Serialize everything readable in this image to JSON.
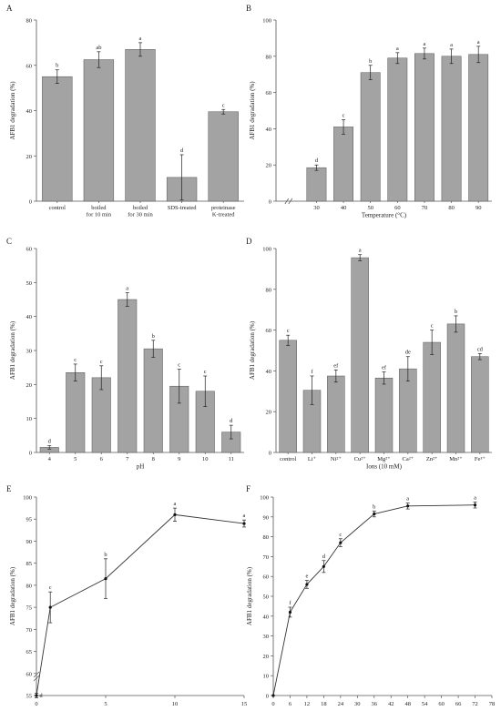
{
  "chart_data": [
    {
      "panel": "A",
      "type": "bar",
      "ylabel": "AFB1 degradation (%)",
      "xlabel": "",
      "ylim": [
        0,
        80
      ],
      "yticks": [
        0,
        20,
        40,
        60,
        80
      ],
      "categories": [
        "control",
        "boiled\nfor 10 min",
        "boiled\nfor 30 min",
        "SDS-treated",
        "proteinase\nK-treated"
      ],
      "values": [
        55,
        62.5,
        67,
        10.5,
        39.5
      ],
      "errors": [
        3,
        3.5,
        3,
        10,
        1
      ],
      "labels": [
        "b",
        "ab",
        "a",
        "d",
        "c"
      ]
    },
    {
      "panel": "B",
      "type": "bar",
      "ylabel": "AFB1 degradation (%)",
      "xlabel": "Temperature (°C)",
      "ylim": [
        0,
        100
      ],
      "yticks": [
        0,
        20,
        40,
        60,
        80,
        100
      ],
      "categories": [
        "30",
        "40",
        "50",
        "60",
        "70",
        "80",
        "90"
      ],
      "values": [
        18.5,
        41,
        71,
        79,
        81.5,
        80,
        81
      ],
      "errors": [
        1.5,
        4,
        4,
        3,
        3,
        4,
        4.5
      ],
      "labels": [
        "d",
        "c",
        "b",
        "a",
        "a",
        "a",
        "a"
      ]
    },
    {
      "panel": "C",
      "type": "bar",
      "ylabel": "AFB1 degradation (%)",
      "xlabel": "pH",
      "ylim": [
        0,
        60
      ],
      "yticks": [
        0,
        10,
        20,
        30,
        40,
        50,
        60
      ],
      "categories": [
        "4",
        "5",
        "6",
        "7",
        "8",
        "9",
        "10",
        "11"
      ],
      "values": [
        1.5,
        23.5,
        22,
        45,
        30.5,
        19.5,
        18,
        6
      ],
      "errors": [
        0.5,
        2.5,
        3.5,
        2,
        2.5,
        5,
        4.5,
        2
      ],
      "labels": [
        "d",
        "c",
        "c",
        "a",
        "b",
        "c",
        "c",
        "d"
      ]
    },
    {
      "panel": "D",
      "type": "bar",
      "ylabel": "AFB1 degradation (%)",
      "xlabel": "Ions (10 mM)",
      "ylim": [
        0,
        100
      ],
      "yticks": [
        0,
        20,
        40,
        60,
        80,
        100
      ],
      "categories": [
        "control",
        "Li⁺",
        "Ni²⁺",
        "Cu²⁺",
        "Mg²⁺",
        "Ca²⁺",
        "Zn²⁺",
        "Mn²⁺",
        "Fe³⁺"
      ],
      "values": [
        55,
        30.5,
        37.5,
        95.5,
        36.5,
        41,
        54,
        63,
        47
      ],
      "errors": [
        2.5,
        7,
        3,
        1.5,
        3,
        6,
        6,
        4,
        1.5
      ],
      "labels": [
        "c",
        "f",
        "ef",
        "a",
        "ef",
        "de",
        "c",
        "b",
        "cd"
      ]
    },
    {
      "panel": "E",
      "type": "line",
      "ylabel": "AFB1 degradation (%)",
      "xlabel": "Concentration of Cu²⁺ (mM)",
      "xlim": [
        0,
        15
      ],
      "xticks": [
        0,
        5,
        10,
        15
      ],
      "ylim": [
        55,
        100
      ],
      "yticks": [
        55,
        60,
        65,
        70,
        75,
        80,
        85,
        90,
        95,
        100
      ],
      "x": [
        0,
        1,
        5,
        10,
        15
      ],
      "y": [
        55,
        75,
        81.5,
        96,
        94
      ],
      "errors": [
        0.5,
        3.5,
        4.5,
        1.5,
        0.8
      ],
      "labels": [
        "d",
        "c",
        "b",
        "a",
        "a"
      ]
    },
    {
      "panel": "F",
      "type": "line",
      "ylabel": "AFB1 degradation (%)",
      "xlabel": "Time (h)",
      "xlim": [
        0,
        78
      ],
      "xticks": [
        0,
        6,
        12,
        18,
        24,
        30,
        36,
        42,
        48,
        54,
        60,
        66,
        72,
        78
      ],
      "ylim": [
        0,
        100
      ],
      "yticks": [
        0,
        10,
        20,
        30,
        40,
        50,
        60,
        70,
        80,
        90,
        100
      ],
      "x": [
        0,
        6,
        12,
        18,
        24,
        36,
        48,
        72
      ],
      "y": [
        0,
        42,
        56,
        65,
        77,
        91.5,
        95.5,
        96
      ],
      "errors": [
        0,
        2.5,
        2,
        3,
        2,
        1.5,
        1.5,
        1.5
      ],
      "labels": [
        "",
        "f",
        "e",
        "d",
        "c",
        "b",
        "a",
        "a"
      ]
    }
  ]
}
